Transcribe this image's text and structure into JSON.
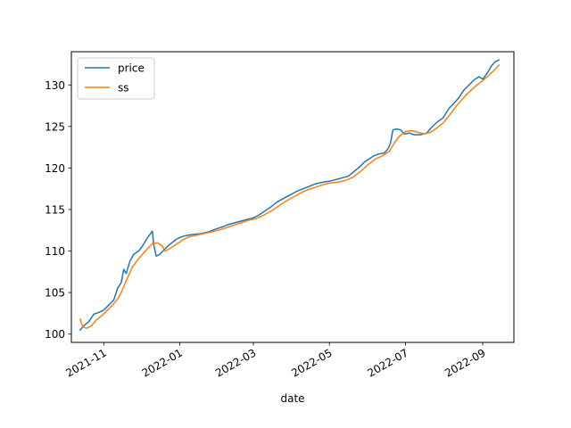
{
  "chart_data": {
    "type": "line",
    "xlabel": "date",
    "ylabel": "",
    "x_is_date": true,
    "xlim": [
      "2021-10-06",
      "2022-09-26"
    ],
    "ylim": [
      99.0,
      134.0
    ],
    "y_ticks": [
      100,
      105,
      110,
      115,
      120,
      125,
      130
    ],
    "x_ticks": [
      "2021-11",
      "2022-01",
      "2022-03",
      "2022-05",
      "2022-07",
      "2022-09"
    ],
    "x_tick_dates": [
      "2021-11-01",
      "2022-01-01",
      "2022-03-01",
      "2022-05-01",
      "2022-07-01",
      "2022-09-01"
    ],
    "legend_position": "top-left",
    "grid": false,
    "series": [
      {
        "name": "price",
        "color": "#1f77b4",
        "points": [
          [
            "2021-10-13",
            100.5
          ],
          [
            "2021-10-16",
            101.0
          ],
          [
            "2021-10-20",
            101.5
          ],
          [
            "2021-10-24",
            102.4
          ],
          [
            "2021-10-28",
            102.6
          ],
          [
            "2021-11-01",
            102.9
          ],
          [
            "2021-11-05",
            103.5
          ],
          [
            "2021-11-09",
            104.1
          ],
          [
            "2021-11-12",
            105.5
          ],
          [
            "2021-11-15",
            106.2
          ],
          [
            "2021-11-17",
            107.8
          ],
          [
            "2021-11-19",
            107.3
          ],
          [
            "2021-11-22",
            108.8
          ],
          [
            "2021-11-25",
            109.6
          ],
          [
            "2021-11-29",
            110.0
          ],
          [
            "2021-12-02",
            110.6
          ],
          [
            "2021-12-06",
            111.6
          ],
          [
            "2021-12-10",
            112.4
          ],
          [
            "2021-12-11",
            110.8
          ],
          [
            "2021-12-13",
            109.4
          ],
          [
            "2021-12-16",
            109.6
          ],
          [
            "2021-12-19",
            110.1
          ],
          [
            "2021-12-24",
            110.8
          ],
          [
            "2021-12-29",
            111.4
          ],
          [
            "2022-01-02",
            111.7
          ],
          [
            "2022-01-07",
            111.9
          ],
          [
            "2022-01-12",
            112.0
          ],
          [
            "2022-01-18",
            112.1
          ],
          [
            "2022-01-24",
            112.3
          ],
          [
            "2022-01-29",
            112.6
          ],
          [
            "2022-02-04",
            112.9
          ],
          [
            "2022-02-09",
            113.2
          ],
          [
            "2022-02-14",
            113.4
          ],
          [
            "2022-02-19",
            113.6
          ],
          [
            "2022-02-24",
            113.8
          ],
          [
            "2022-03-01",
            114.0
          ],
          [
            "2022-03-05",
            114.3
          ],
          [
            "2022-03-10",
            114.8
          ],
          [
            "2022-03-15",
            115.3
          ],
          [
            "2022-03-20",
            115.9
          ],
          [
            "2022-03-26",
            116.4
          ],
          [
            "2022-03-31",
            116.8
          ],
          [
            "2022-04-05",
            117.2
          ],
          [
            "2022-04-10",
            117.5
          ],
          [
            "2022-04-15",
            117.8
          ],
          [
            "2022-04-20",
            118.1
          ],
          [
            "2022-04-26",
            118.3
          ],
          [
            "2022-05-01",
            118.4
          ],
          [
            "2022-05-06",
            118.6
          ],
          [
            "2022-05-11",
            118.8
          ],
          [
            "2022-05-16",
            119.0
          ],
          [
            "2022-05-21",
            119.6
          ],
          [
            "2022-05-25",
            120.1
          ],
          [
            "2022-05-29",
            120.7
          ],
          [
            "2022-06-02",
            121.1
          ],
          [
            "2022-06-06",
            121.5
          ],
          [
            "2022-06-10",
            121.7
          ],
          [
            "2022-06-14",
            121.8
          ],
          [
            "2022-06-17",
            122.3
          ],
          [
            "2022-06-19",
            123.0
          ],
          [
            "2022-06-21",
            124.6
          ],
          [
            "2022-06-24",
            124.7
          ],
          [
            "2022-06-27",
            124.6
          ],
          [
            "2022-06-30",
            124.1
          ],
          [
            "2022-07-04",
            124.2
          ],
          [
            "2022-07-08",
            124.0
          ],
          [
            "2022-07-13",
            124.0
          ],
          [
            "2022-07-18",
            124.2
          ],
          [
            "2022-07-22",
            124.9
          ],
          [
            "2022-07-27",
            125.6
          ],
          [
            "2022-07-31",
            126.0
          ],
          [
            "2022-08-05",
            127.2
          ],
          [
            "2022-08-09",
            127.8
          ],
          [
            "2022-08-13",
            128.5
          ],
          [
            "2022-08-17",
            129.4
          ],
          [
            "2022-08-21",
            130.0
          ],
          [
            "2022-08-25",
            130.6
          ],
          [
            "2022-08-29",
            131.0
          ],
          [
            "2022-09-01",
            130.7
          ],
          [
            "2022-09-05",
            131.5
          ],
          [
            "2022-09-08",
            132.3
          ],
          [
            "2022-09-11",
            132.8
          ],
          [
            "2022-09-14",
            133.0
          ]
        ]
      },
      {
        "name": "ss",
        "color": "#ff7f0e",
        "points": [
          [
            "2021-10-13",
            101.8
          ],
          [
            "2021-10-15",
            100.9
          ],
          [
            "2021-10-18",
            100.7
          ],
          [
            "2021-10-22",
            101.0
          ],
          [
            "2021-10-26",
            101.7
          ],
          [
            "2021-10-31",
            102.3
          ],
          [
            "2021-11-04",
            102.9
          ],
          [
            "2021-11-08",
            103.5
          ],
          [
            "2021-11-12",
            104.2
          ],
          [
            "2021-11-15",
            105.0
          ],
          [
            "2021-11-18",
            106.1
          ],
          [
            "2021-11-21",
            107.1
          ],
          [
            "2021-11-24",
            108.1
          ],
          [
            "2021-11-28",
            108.9
          ],
          [
            "2021-12-02",
            109.6
          ],
          [
            "2021-12-06",
            110.3
          ],
          [
            "2021-12-10",
            110.9
          ],
          [
            "2021-12-14",
            111.0
          ],
          [
            "2021-12-18",
            110.6
          ],
          [
            "2021-12-20",
            110.0
          ],
          [
            "2021-12-24",
            110.3
          ],
          [
            "2021-12-29",
            110.8
          ],
          [
            "2022-01-03",
            111.3
          ],
          [
            "2022-01-08",
            111.7
          ],
          [
            "2022-01-14",
            111.9
          ],
          [
            "2022-01-20",
            112.1
          ],
          [
            "2022-01-26",
            112.3
          ],
          [
            "2022-02-01",
            112.5
          ],
          [
            "2022-02-07",
            112.8
          ],
          [
            "2022-02-13",
            113.1
          ],
          [
            "2022-02-19",
            113.4
          ],
          [
            "2022-02-25",
            113.7
          ],
          [
            "2022-03-03",
            113.9
          ],
          [
            "2022-03-09",
            114.3
          ],
          [
            "2022-03-15",
            114.8
          ],
          [
            "2022-03-21",
            115.4
          ],
          [
            "2022-03-27",
            116.0
          ],
          [
            "2022-04-02",
            116.5
          ],
          [
            "2022-04-08",
            117.0
          ],
          [
            "2022-04-14",
            117.4
          ],
          [
            "2022-04-20",
            117.7
          ],
          [
            "2022-04-26",
            118.0
          ],
          [
            "2022-05-02",
            118.2
          ],
          [
            "2022-05-08",
            118.3
          ],
          [
            "2022-05-14",
            118.5
          ],
          [
            "2022-05-20",
            118.9
          ],
          [
            "2022-05-26",
            119.6
          ],
          [
            "2022-06-01",
            120.4
          ],
          [
            "2022-06-07",
            121.1
          ],
          [
            "2022-06-13",
            121.5
          ],
          [
            "2022-06-18",
            122.0
          ],
          [
            "2022-06-22",
            123.0
          ],
          [
            "2022-06-26",
            123.8
          ],
          [
            "2022-07-01",
            124.4
          ],
          [
            "2022-07-06",
            124.5
          ],
          [
            "2022-07-11",
            124.3
          ],
          [
            "2022-07-16",
            124.1
          ],
          [
            "2022-07-21",
            124.3
          ],
          [
            "2022-07-26",
            124.8
          ],
          [
            "2022-07-31",
            125.4
          ],
          [
            "2022-08-05",
            126.3
          ],
          [
            "2022-08-10",
            127.3
          ],
          [
            "2022-08-15",
            128.2
          ],
          [
            "2022-08-20",
            129.0
          ],
          [
            "2022-08-25",
            129.7
          ],
          [
            "2022-08-30",
            130.3
          ],
          [
            "2022-09-04",
            130.9
          ],
          [
            "2022-09-09",
            131.6
          ],
          [
            "2022-09-14",
            132.4
          ]
        ]
      }
    ]
  }
}
